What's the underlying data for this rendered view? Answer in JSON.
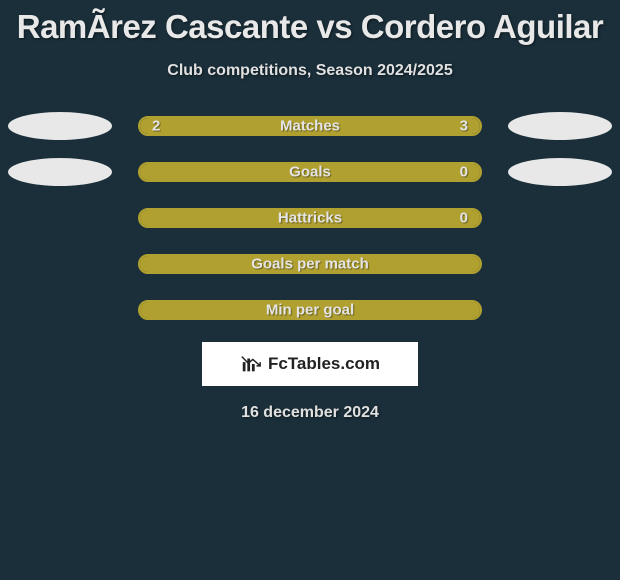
{
  "background_color": "#1a2f3a",
  "text_color": "#e8e8e8",
  "bar_color": "#b0a030",
  "ellipse_color": "#e8e8e8",
  "title": "RamÃ­rez Cascante vs Cordero Aguilar",
  "subtitle": "Club competitions, Season 2024/2025",
  "logo_text": "FcTables.com",
  "date_text": "16 december 2024",
  "rows": [
    {
      "label": "Matches",
      "left_val": "2",
      "right_val": "3",
      "left_pct": 40,
      "right_pct": 60,
      "show_left_ellipse": true,
      "show_right_ellipse": true,
      "show_vals": true
    },
    {
      "label": "Goals",
      "left_val": "",
      "right_val": "0",
      "left_pct": 100,
      "right_pct": 0,
      "show_left_ellipse": true,
      "show_right_ellipse": true,
      "show_vals": true
    },
    {
      "label": "Hattricks",
      "left_val": "",
      "right_val": "0",
      "left_pct": 100,
      "right_pct": 0,
      "show_left_ellipse": false,
      "show_right_ellipse": false,
      "show_vals": true
    },
    {
      "label": "Goals per match",
      "left_val": "",
      "right_val": "",
      "left_pct": 100,
      "right_pct": 0,
      "show_left_ellipse": false,
      "show_right_ellipse": false,
      "show_vals": false
    },
    {
      "label": "Min per goal",
      "left_val": "",
      "right_val": "",
      "left_pct": 100,
      "right_pct": 0,
      "show_left_ellipse": false,
      "show_right_ellipse": false,
      "show_vals": false
    }
  ]
}
